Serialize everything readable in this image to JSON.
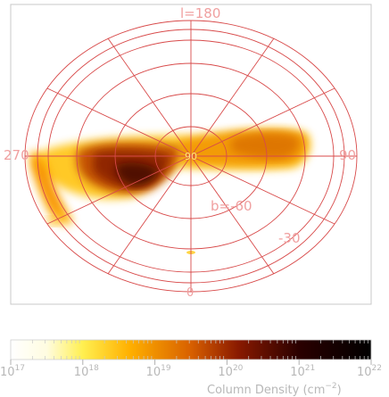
{
  "projection": {
    "type": "polar-orthographic",
    "center_latitude_label": "b=-90",
    "grid_color": "#d84a4a"
  },
  "labels": {
    "l180": "l=180",
    "l90": "90",
    "l270": "270",
    "l0": "0",
    "b60": "b=-60",
    "b30": "-30"
  },
  "colorbar": {
    "title": "Column Density (cm",
    "title_exp": "−2",
    "title_close": ")",
    "scale": "log",
    "ticks": [
      {
        "base": "10",
        "exp": "17",
        "value": 17
      },
      {
        "base": "10",
        "exp": "18",
        "value": 18
      },
      {
        "base": "10",
        "exp": "19",
        "value": 19
      },
      {
        "base": "10",
        "exp": "20",
        "value": 20
      },
      {
        "base": "10",
        "exp": "21",
        "value": 21
      },
      {
        "base": "10",
        "exp": "22",
        "value": 22
      }
    ],
    "colors": [
      "#ffffff",
      "#ffff40",
      "#ffb000",
      "#d05000",
      "#600000",
      "#000000"
    ]
  }
}
